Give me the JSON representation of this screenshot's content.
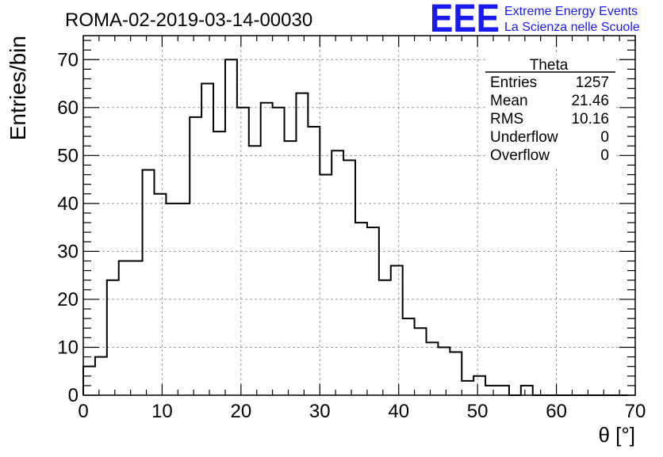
{
  "chart_data": {
    "type": "histogram",
    "title": "ROMA-02-2019-03-14-00030",
    "xlabel": "θ [°]",
    "ylabel": "Entries/bin",
    "xlim": [
      0,
      70
    ],
    "ylim": [
      0,
      75
    ],
    "grid": true,
    "bin_width": 1.5,
    "bin_start": 0,
    "bin_counts": [
      6,
      8,
      24,
      28,
      28,
      47,
      42,
      40,
      40,
      58,
      65,
      55,
      70,
      60,
      52,
      61,
      60,
      53,
      63,
      56,
      46,
      51,
      49,
      36,
      35,
      24,
      27,
      16,
      14,
      11,
      10,
      9,
      3,
      4,
      2,
      2,
      0,
      2,
      0,
      0,
      0,
      0,
      0,
      0,
      0,
      0
    ],
    "x_ticks": [
      0,
      10,
      20,
      30,
      40,
      50,
      60,
      70
    ],
    "y_ticks": [
      0,
      10,
      20,
      30,
      40,
      50,
      60,
      70
    ],
    "stats_box": {
      "title": "Theta",
      "rows": [
        {
          "label": "Entries",
          "value": "1257"
        },
        {
          "label": "Mean",
          "value": "21.46"
        },
        {
          "label": "RMS",
          "value": "10.16"
        },
        {
          "label": "Underflow",
          "value": "0"
        },
        {
          "label": "Overflow",
          "value": "0"
        }
      ]
    }
  },
  "branding": {
    "logo_text": "EEE",
    "line1": "Extreme Energy Events",
    "line2": "La Scienza nelle Scuole",
    "color": "#1a1aee"
  }
}
